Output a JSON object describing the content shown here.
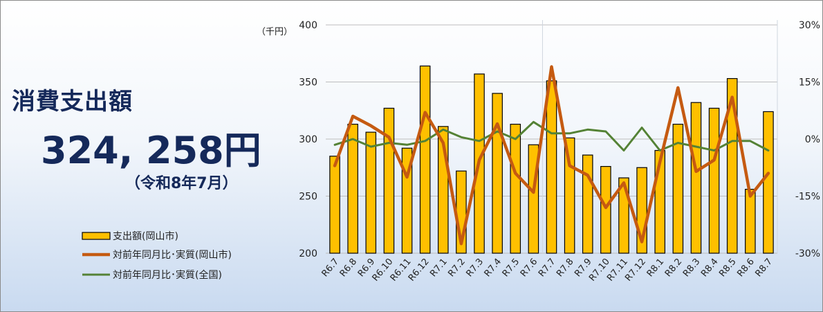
{
  "summary": {
    "title": "消費支出額",
    "amount": "324, 258円",
    "period": "（令和8年7月）"
  },
  "colors": {
    "bar": "#ffc000",
    "bar_edge": "#000000",
    "okayama_line": "#c55a11",
    "national_line": "#548235",
    "text_dark": "#15295a"
  },
  "chart_data": {
    "type": "bar",
    "categories": [
      "R6.7",
      "R6.8",
      "R6.9",
      "R6.10",
      "R6.11",
      "R6.12",
      "R7.1",
      "R7.2",
      "R7.3",
      "R7.4",
      "R7.5",
      "R7.6",
      "R7.7",
      "R7.8",
      "R7.9",
      "R7.10",
      "R7.11",
      "R7.12",
      "R8.1",
      "R8.2",
      "R8.3",
      "R8.4",
      "R8.5",
      "R8.6",
      "R8.7"
    ],
    "y_unit_label": "（千円）",
    "ylim": [
      200,
      400
    ],
    "y_ticks": [
      "200",
      "250",
      "300",
      "350",
      "400"
    ],
    "y2lim": [
      -30,
      30
    ],
    "y2_ticks": [
      "-30%",
      "-15%",
      "0%",
      "15%",
      "30%"
    ],
    "series": [
      {
        "name": "支出額(岡山市)",
        "type": "bar",
        "axis": "left",
        "values": [
          285,
          313,
          306,
          327,
          292,
          364,
          311,
          272,
          357,
          340,
          313,
          295,
          351,
          301,
          286,
          276,
          266,
          275,
          290,
          313,
          332,
          327,
          353,
          256,
          324
        ]
      },
      {
        "name": "対前年同月比･実質(岡山市)",
        "type": "line",
        "axis": "right",
        "values": [
          -7,
          6,
          3.5,
          0.5,
          -10,
          7,
          -1,
          -27.5,
          -5.5,
          4,
          -9,
          -14,
          19,
          -7,
          -9.5,
          -18,
          -11.5,
          -27,
          -6,
          13.5,
          -8.5,
          -5.5,
          11,
          -15,
          -9
        ]
      },
      {
        "name": "対前年同月比･実質(全国)",
        "type": "line",
        "axis": "right",
        "values": [
          -1.5,
          0,
          -2,
          -1,
          -1.5,
          -0.5,
          2.5,
          0.5,
          -0.5,
          2,
          0,
          4.5,
          1.5,
          1.5,
          2.5,
          2,
          -3,
          3,
          -3,
          -1,
          -2,
          -3,
          -0.5,
          -0.5,
          -3
        ]
      }
    ],
    "grid": "horizontal",
    "legend_position": "bottom-left"
  }
}
